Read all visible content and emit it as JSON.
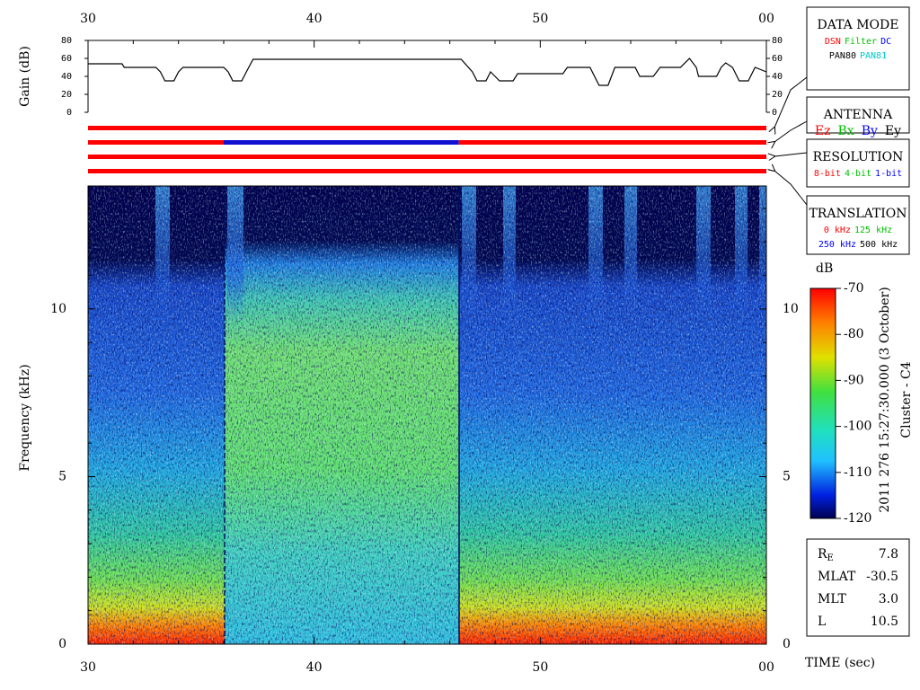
{
  "chart_data": [
    {
      "type": "line",
      "y_label": "Gain (dB)",
      "color": "#000000",
      "x": [
        30,
        31.5,
        31.6,
        33,
        33.2,
        33.4,
        33.8,
        34,
        34.2,
        36,
        36.2,
        36.4,
        36.8,
        37,
        37.3,
        46.5,
        47,
        47.2,
        47.6,
        47.8,
        48,
        48.2,
        48.8,
        49,
        51,
        51.2,
        52.2,
        52.6,
        53,
        53.3,
        54.2,
        54.4,
        55,
        55.3,
        56.2,
        56.6,
        56.9,
        57,
        57.8,
        58,
        58.2,
        58.5,
        58.8,
        59.2,
        59.5,
        60
      ],
      "values": [
        54,
        54,
        50,
        50,
        45,
        35,
        35,
        45,
        50,
        50,
        45,
        35,
        35,
        45,
        59,
        59,
        45,
        35,
        35,
        45,
        40,
        35,
        35,
        43,
        43,
        50,
        50,
        30,
        30,
        50,
        50,
        40,
        40,
        50,
        50,
        60,
        50,
        40,
        40,
        50,
        55,
        50,
        35,
        35,
        50,
        45
      ],
      "xlim": [
        30,
        60
      ],
      "xticks": [
        30,
        40,
        50,
        {
          "value": 60,
          "label": "00"
        }
      ],
      "xminorticks": [
        32,
        34,
        36,
        38,
        42,
        44,
        46,
        48,
        52,
        54,
        56,
        58
      ],
      "ylim": [
        0,
        80
      ],
      "yticks": [
        0,
        20,
        40,
        60,
        80
      ]
    },
    {
      "type": "segments",
      "xlim": [
        30,
        60
      ],
      "rows": [
        [
          {
            "start": 30,
            "end": 60,
            "color": "#ff0000"
          }
        ],
        [
          {
            "start": 30,
            "end": 36,
            "color": "#ff0000"
          },
          {
            "start": 36,
            "end": 46.4,
            "color": "#1010d0"
          },
          {
            "start": 46.4,
            "end": 60,
            "color": "#ff0000"
          }
        ],
        [
          {
            "start": 30,
            "end": 60,
            "color": "#ff0000"
          }
        ],
        [
          {
            "start": 30,
            "end": 60,
            "color": "#ff0000"
          }
        ]
      ]
    },
    {
      "type": "spectrogram",
      "y_label": "Frequency (kHz)",
      "x_label": "TIME (sec)",
      "xlim": [
        30,
        60
      ],
      "xticks": [
        30,
        40,
        50,
        {
          "value": 60,
          "label": "00"
        }
      ],
      "xminorticks": [
        32,
        34,
        36,
        38,
        42,
        44,
        46,
        48,
        52,
        54,
        56,
        58
      ],
      "ylim": [
        0,
        13.67
      ],
      "yticks": [
        0,
        5,
        10
      ],
      "yminorticks": [
        1,
        2,
        3,
        4,
        6,
        7,
        8,
        9,
        11,
        12,
        13
      ],
      "colorbar": {
        "label": "dB",
        "lim": [
          -120,
          -70
        ],
        "ticks": [
          -120,
          -110,
          -100,
          -90,
          -80,
          -70
        ]
      }
    }
  ],
  "caption": [
    "2011 276 15:27:30.000 (3 October)",
    "Cluster - C4"
  ],
  "panels": [
    {
      "title": "DATA MODE",
      "rows": [
        [
          {
            "text": "DSN",
            "color": "#ff0000"
          },
          {
            "text": "Filter",
            "color": "#00c000"
          },
          {
            "text": "DC",
            "color": "#0000ff"
          }
        ],
        [
          {
            "text": "PAN80",
            "color": "#000000"
          },
          {
            "text": "PAN81",
            "color": "#00c8c8"
          }
        ]
      ]
    },
    {
      "title": "ANTENNA",
      "rows": [
        [
          {
            "text": "Ez",
            "color": "#ff0000"
          },
          {
            "text": "Bx",
            "color": "#00c000"
          },
          {
            "text": "By",
            "color": "#0000ff"
          },
          {
            "text": "Ey",
            "color": "#000000"
          }
        ]
      ]
    },
    {
      "title": "RESOLUTION",
      "rows": [
        [
          {
            "text": "8-bit",
            "color": "#ff0000"
          },
          {
            "text": "4-bit",
            "color": "#00c000"
          },
          {
            "text": "1-bit",
            "color": "#0000ff"
          }
        ]
      ]
    },
    {
      "title": "TRANSLATION",
      "rows": [
        [
          {
            "text": "0 kHz",
            "color": "#ff0000"
          },
          {
            "text": "125 kHz",
            "color": "#00c000"
          }
        ],
        [
          {
            "text": "250 kHz",
            "color": "#0000ff"
          },
          {
            "text": "500 kHz",
            "color": "#000000"
          }
        ]
      ]
    }
  ],
  "orbit": [
    {
      "label": "R",
      "sub": "E",
      "value": "7.8"
    },
    {
      "label": "MLAT",
      "value": "-30.5"
    },
    {
      "label": "MLT",
      "value": "3.0"
    },
    {
      "label": "L",
      "value": "10.5"
    }
  ]
}
